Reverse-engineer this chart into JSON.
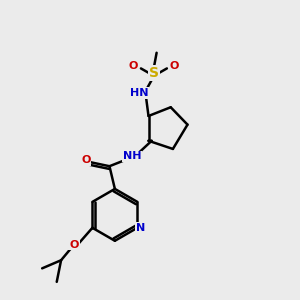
{
  "background_color": "#ebebeb",
  "atom_colors": {
    "C": "#000000",
    "N": "#0000cc",
    "O": "#cc0000",
    "S": "#ccaa00",
    "H": "#000000"
  },
  "bond_color": "#000000",
  "bond_width": 1.8,
  "figsize": [
    3.0,
    3.0
  ],
  "dpi": 100,
  "xlim": [
    0.5,
    5.5
  ],
  "ylim": [
    0.3,
    5.8
  ]
}
